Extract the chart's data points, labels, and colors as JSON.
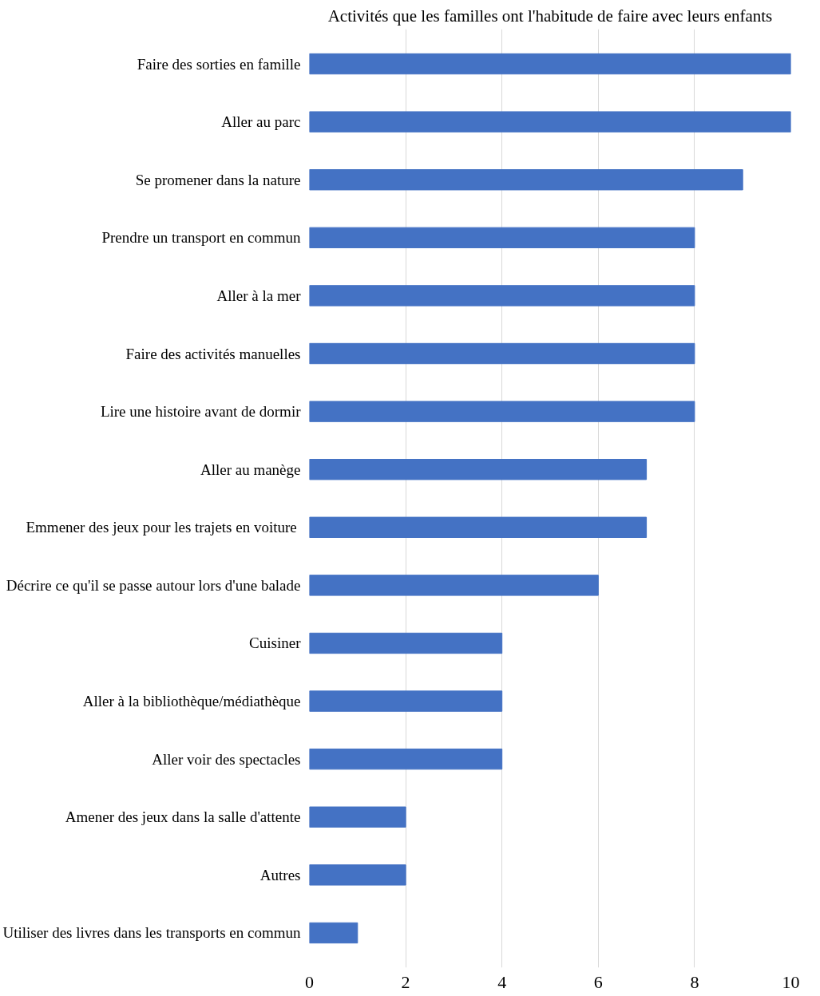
{
  "chart_data": {
    "type": "bar",
    "orientation": "horizontal",
    "title": "Activités que les familles ont l'habitude de faire avec leurs enfants",
    "categories": [
      "Faire des sorties en famille",
      "Aller au parc",
      "Se promener dans la nature",
      "Prendre un transport en commun",
      "Aller à la mer",
      "Faire des activités manuelles",
      "Lire une histoire avant de dormir",
      "Aller au manège",
      "Emmener des  jeux pour les trajets en voiture",
      "Décrire ce qu'il se passe autour lors d'une balade",
      "Cuisiner",
      "Aller à la bibliothèque/médiathèque",
      "Aller voir des spectacles",
      "Amener des jeux dans la salle d'attente",
      "Autres",
      "Utiliser des livres dans les transports en commun"
    ],
    "values": [
      10,
      10,
      9,
      8,
      8,
      8,
      8,
      7,
      7,
      6,
      4,
      4,
      4,
      2,
      2,
      1
    ],
    "color": "#4472c4",
    "xlim": [
      0,
      10
    ],
    "xticks": [
      0,
      2,
      4,
      6,
      8,
      10
    ],
    "grid": "x"
  }
}
